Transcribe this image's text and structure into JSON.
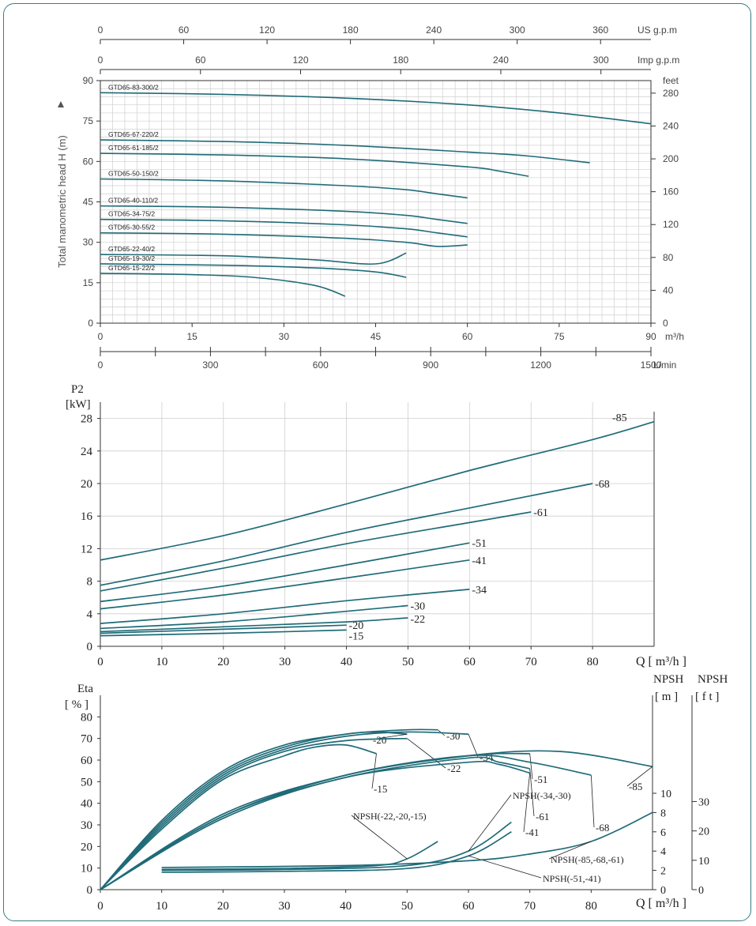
{
  "colors": {
    "curve": "#1f6b78",
    "grid": "#cfcfcf",
    "axis": "#333333",
    "frame": "#3a7f86"
  },
  "chart_data": [
    {
      "type": "line",
      "xlabel": "m³/h",
      "ylabel": "Total manometric head H (m)",
      "xlim": [
        0,
        90
      ],
      "ylim": [
        0,
        90
      ],
      "x_ticks": [
        "0",
        "15",
        "30",
        "45",
        "60",
        "75",
        "90"
      ],
      "y_ticks": [
        "0",
        "15",
        "30",
        "45",
        "60",
        "75",
        "90"
      ],
      "top_axes": [
        {
          "label": "US g.p.m",
          "ticks": [
            "0",
            "60",
            "120",
            "180",
            "240",
            "300",
            "360"
          ]
        },
        {
          "label": "Imp g.p.m",
          "ticks": [
            "0",
            "60",
            "120",
            "180",
            "240",
            "300"
          ]
        }
      ],
      "bottom_axis": {
        "label": "L/min",
        "ticks": [
          "0",
          "300",
          "600",
          "900",
          "1200",
          "1500"
        ]
      },
      "right_axis": {
        "label": "feet",
        "ticks": [
          "0",
          "40",
          "80",
          "120",
          "160",
          "200",
          "240",
          "280"
        ]
      },
      "grid": true,
      "series": [
        {
          "name": "GTD65-83-300/2",
          "x": [
            0,
            20,
            40,
            60,
            75,
            90
          ],
          "y": [
            85.5,
            84.9,
            83.5,
            81,
            78,
            74
          ]
        },
        {
          "name": "GTD65-67-220/2",
          "x": [
            0,
            20,
            40,
            60,
            70,
            80
          ],
          "y": [
            68,
            67.4,
            66,
            63.5,
            62,
            59.5
          ]
        },
        {
          "name": "GTD65-61-185/2",
          "x": [
            0,
            20,
            40,
            60,
            65,
            70
          ],
          "y": [
            63,
            62.4,
            61,
            58,
            56.5,
            54.5
          ]
        },
        {
          "name": "GTD65-50-150/2",
          "x": [
            0,
            20,
            40,
            50,
            55,
            60
          ],
          "y": [
            53.5,
            52.8,
            51,
            49.5,
            48,
            46.5
          ]
        },
        {
          "name": "GTD65-40-110/2",
          "x": [
            0,
            20,
            40,
            50,
            55,
            60
          ],
          "y": [
            43.5,
            43,
            41.5,
            40,
            38.5,
            37
          ]
        },
        {
          "name": "GTD65-34-75/2",
          "x": [
            0,
            20,
            40,
            50,
            55,
            60
          ],
          "y": [
            38.5,
            38,
            36.5,
            35,
            33.5,
            32
          ]
        },
        {
          "name": "GTD65-30-55/2",
          "x": [
            0,
            20,
            40,
            50,
            55,
            60
          ],
          "y": [
            33.5,
            33,
            31.5,
            30,
            28.5,
            29
          ]
        },
        {
          "name": "GTD65-22-40/2",
          "x": [
            0,
            20,
            35,
            45,
            50
          ],
          "y": [
            25.5,
            25,
            23.5,
            22,
            26
          ]
        },
        {
          "name": "GTD65-19-30/2",
          "x": [
            0,
            20,
            35,
            45,
            50
          ],
          "y": [
            22,
            21.5,
            20.5,
            19,
            17
          ]
        },
        {
          "name": "GTD65-15-22/2",
          "x": [
            0,
            15,
            25,
            35,
            40
          ],
          "y": [
            18.5,
            18,
            17,
            14,
            10
          ]
        }
      ]
    },
    {
      "type": "line",
      "title": "",
      "ylabel_line1": "P2",
      "ylabel_line2": "[kW]",
      "xlabel": "Q  [ m³/h ]",
      "xlim": [
        0,
        90
      ],
      "ylim": [
        0,
        30
      ],
      "x_ticks": [
        "0",
        "10",
        "20",
        "30",
        "40",
        "50",
        "60",
        "70",
        "80"
      ],
      "y_ticks": [
        "0",
        "4",
        "8",
        "12",
        "16",
        "20",
        "24",
        "28"
      ],
      "grid": true,
      "series": [
        {
          "label": "-85",
          "x": [
            0,
            20,
            40,
            60,
            80,
            90
          ],
          "y": [
            10.6,
            13.6,
            17.5,
            21.6,
            25.4,
            27.6
          ]
        },
        {
          "label": "-68",
          "x": [
            0,
            20,
            40,
            60,
            80
          ],
          "y": [
            7.5,
            10.5,
            14,
            17,
            20
          ]
        },
        {
          "label": "-61",
          "x": [
            0,
            20,
            40,
            60,
            70
          ],
          "y": [
            6.8,
            9.6,
            12.6,
            15.2,
            16.5
          ]
        },
        {
          "label": "-51",
          "x": [
            0,
            20,
            40,
            60
          ],
          "y": [
            5.5,
            7.4,
            10,
            12.7
          ]
        },
        {
          "label": "-41",
          "x": [
            0,
            20,
            40,
            60
          ],
          "y": [
            4.6,
            6.3,
            8.4,
            10.6
          ]
        },
        {
          "label": "-34",
          "x": [
            0,
            20,
            40,
            60
          ],
          "y": [
            2.8,
            4,
            5.6,
            7
          ]
        },
        {
          "label": "-30",
          "x": [
            0,
            20,
            40,
            50
          ],
          "y": [
            2.2,
            3,
            4.3,
            5
          ]
        },
        {
          "label": "-22",
          "x": [
            0,
            20,
            40,
            50
          ],
          "y": [
            1.8,
            2.4,
            3,
            3.5
          ]
        },
        {
          "label": "-20",
          "x": [
            0,
            20,
            40
          ],
          "y": [
            1.6,
            2.1,
            2.6
          ]
        },
        {
          "label": "-15",
          "x": [
            0,
            20,
            40
          ],
          "y": [
            1.3,
            1.6,
            2
          ]
        }
      ]
    },
    {
      "type": "line",
      "ylabel_line1": "Eta",
      "ylabel_line2": "[ % ]",
      "xlabel": "Q  [ m³/h ]",
      "right_label_1": "NPSH",
      "right_unit_1": "[ m ]",
      "right_label_2": "NPSH",
      "right_unit_2": "[ f t ]",
      "xlim": [
        0,
        90
      ],
      "ylim": [
        0,
        90
      ],
      "x_ticks": [
        "0",
        "10",
        "20",
        "30",
        "40",
        "50",
        "60",
        "70",
        "80"
      ],
      "y_ticks": [
        "0",
        "10",
        "20",
        "30",
        "40",
        "50",
        "60",
        "70",
        "80"
      ],
      "npsh_m_ticks": [
        "0",
        "2",
        "4",
        "6",
        "8",
        "10"
      ],
      "npsh_ft_ticks": [
        "0",
        "10",
        "20",
        "30"
      ],
      "grid": false,
      "eta_series": [
        {
          "label": "-20",
          "x": [
            0,
            10,
            20,
            30,
            40,
            45,
            50
          ],
          "y": [
            0,
            32,
            55,
            67,
            72,
            73,
            72
          ]
        },
        {
          "label": "-30",
          "x": [
            0,
            10,
            20,
            30,
            40,
            50,
            55
          ],
          "y": [
            0,
            31,
            54,
            66,
            72,
            74,
            74
          ]
        },
        {
          "label": "-34",
          "x": [
            0,
            10,
            20,
            30,
            40,
            50,
            60
          ],
          "y": [
            0,
            30,
            53,
            65,
            71,
            73,
            72
          ]
        },
        {
          "label": "-22",
          "x": [
            0,
            10,
            20,
            30,
            40,
            50
          ],
          "y": [
            0,
            29,
            52,
            64,
            69,
            70
          ]
        },
        {
          "label": "-15",
          "x": [
            0,
            10,
            20,
            30,
            35,
            40,
            45
          ],
          "y": [
            0,
            28,
            51,
            62,
            66,
            67,
            63
          ]
        },
        {
          "label": "-85",
          "x": [
            0,
            20,
            40,
            60,
            75,
            90
          ],
          "y": [
            0,
            35,
            53,
            62,
            64,
            57
          ]
        },
        {
          "label": "-51",
          "x": [
            0,
            20,
            40,
            60,
            70
          ],
          "y": [
            0,
            34,
            53,
            62,
            63
          ]
        },
        {
          "label": "-68",
          "x": [
            0,
            20,
            40,
            60,
            70,
            80
          ],
          "y": [
            0,
            34,
            53,
            62,
            59,
            53
          ]
        },
        {
          "label": "-61",
          "x": [
            0,
            20,
            40,
            60,
            65,
            70
          ],
          "y": [
            0,
            34,
            52,
            61,
            59,
            56
          ]
        },
        {
          "label": "-41",
          "x": [
            0,
            20,
            40,
            60,
            65,
            70
          ],
          "y": [
            0,
            33,
            52,
            59,
            58,
            54
          ]
        }
      ],
      "npsh_series": [
        {
          "label": "NPSH(-22,-20,-15)",
          "x": [
            10,
            30,
            45,
            50,
            55
          ],
          "y_m": [
            2.1,
            2.2,
            2.5,
            3.2,
            5
          ]
        },
        {
          "label": "NPSH(-34,-30)",
          "x": [
            10,
            30,
            50,
            60,
            67
          ],
          "y_m": [
            2,
            2.1,
            2.5,
            4,
            7
          ]
        },
        {
          "label": "NPSH(-51,-41)",
          "x": [
            10,
            30,
            50,
            60,
            67
          ],
          "y_m": [
            1.8,
            1.9,
            2.2,
            3.5,
            6
          ]
        },
        {
          "label": "NPSH(-85,-68,-61)",
          "x": [
            10,
            40,
            60,
            70,
            80,
            90
          ],
          "y_m": [
            2.3,
            2.5,
            3,
            3.7,
            5,
            8
          ]
        }
      ]
    }
  ]
}
